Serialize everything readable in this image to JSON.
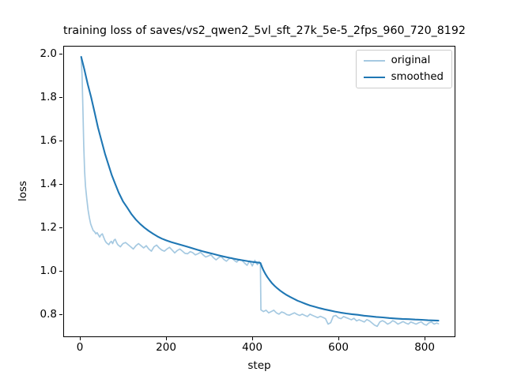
{
  "chart_data": {
    "type": "line",
    "title": "training loss of saves/vs2_qwen2_5vl_sft_27k_5e-5_2fps_960_720_8192",
    "xlabel": "step",
    "ylabel": "loss",
    "xlim": [
      -38.6,
      871.4
    ],
    "ylim": [
      0.694,
      2.036
    ],
    "xticks": [
      0,
      200,
      400,
      600,
      800
    ],
    "yticks": [
      0.8,
      1.0,
      1.2,
      1.4,
      1.6,
      1.8,
      2.0
    ],
    "grid": false,
    "legend_position": "upper right",
    "series": [
      {
        "name": "original",
        "color": "#a5c9e1",
        "linewidth": 1.7,
        "x": [
          3,
          5,
          7,
          9,
          11,
          13,
          16,
          19,
          22,
          25,
          28,
          31,
          34,
          37,
          40,
          43,
          46,
          49,
          52,
          55,
          58,
          61,
          64,
          67,
          70,
          73,
          76,
          79,
          82,
          85,
          88,
          91,
          94,
          97,
          100,
          106,
          112,
          118,
          124,
          130,
          136,
          142,
          148,
          154,
          160,
          166,
          172,
          178,
          184,
          190,
          196,
          202,
          208,
          214,
          220,
          226,
          232,
          238,
          244,
          250,
          256,
          262,
          268,
          274,
          280,
          286,
          292,
          298,
          304,
          310,
          316,
          322,
          328,
          334,
          340,
          346,
          352,
          358,
          364,
          370,
          376,
          382,
          388,
          394,
          400,
          406,
          412,
          416,
          419,
          420,
          426,
          432,
          438,
          444,
          450,
          456,
          462,
          468,
          474,
          480,
          486,
          492,
          498,
          504,
          510,
          516,
          522,
          528,
          534,
          540,
          546,
          552,
          558,
          564,
          570,
          576,
          582,
          588,
          594,
          600,
          606,
          612,
          618,
          624,
          630,
          636,
          642,
          648,
          654,
          660,
          666,
          672,
          678,
          684,
          690,
          696,
          702,
          708,
          714,
          720,
          726,
          732,
          738,
          744,
          750,
          756,
          762,
          768,
          774,
          780,
          786,
          792,
          798,
          804,
          810,
          816,
          822,
          828,
          832
        ],
        "y": [
          1.985,
          1.9,
          1.74,
          1.58,
          1.46,
          1.39,
          1.33,
          1.28,
          1.245,
          1.215,
          1.2,
          1.185,
          1.18,
          1.17,
          1.175,
          1.165,
          1.155,
          1.165,
          1.17,
          1.155,
          1.14,
          1.13,
          1.125,
          1.12,
          1.13,
          1.135,
          1.125,
          1.14,
          1.145,
          1.13,
          1.12,
          1.115,
          1.11,
          1.118,
          1.125,
          1.13,
          1.12,
          1.11,
          1.1,
          1.115,
          1.125,
          1.115,
          1.105,
          1.115,
          1.1,
          1.09,
          1.11,
          1.118,
          1.105,
          1.095,
          1.09,
          1.1,
          1.108,
          1.095,
          1.082,
          1.093,
          1.1,
          1.09,
          1.08,
          1.078,
          1.088,
          1.083,
          1.073,
          1.078,
          1.085,
          1.073,
          1.063,
          1.068,
          1.074,
          1.06,
          1.05,
          1.06,
          1.065,
          1.052,
          1.044,
          1.055,
          1.06,
          1.048,
          1.04,
          1.052,
          1.048,
          1.035,
          1.025,
          1.045,
          1.022,
          1.048,
          1.028,
          1.042,
          1.03,
          0.82,
          0.812,
          0.818,
          0.806,
          0.812,
          0.818,
          0.806,
          0.8,
          0.81,
          0.806,
          0.798,
          0.795,
          0.801,
          0.806,
          0.799,
          0.794,
          0.8,
          0.794,
          0.789,
          0.8,
          0.794,
          0.789,
          0.784,
          0.79,
          0.785,
          0.779,
          0.754,
          0.761,
          0.79,
          0.794,
          0.783,
          0.779,
          0.789,
          0.784,
          0.779,
          0.774,
          0.781,
          0.769,
          0.774,
          0.769,
          0.764,
          0.775,
          0.769,
          0.759,
          0.749,
          0.744,
          0.764,
          0.77,
          0.764,
          0.754,
          0.76,
          0.77,
          0.764,
          0.754,
          0.76,
          0.766,
          0.759,
          0.754,
          0.764,
          0.759,
          0.754,
          0.76,
          0.765,
          0.754,
          0.749,
          0.76,
          0.764,
          0.754,
          0.759,
          0.756
        ]
      },
      {
        "name": "smoothed",
        "color": "#1f77b4",
        "linewidth": 2.1,
        "x": [
          3,
          10,
          18,
          26,
          34,
          42,
          50,
          58,
          66,
          74,
          82,
          90,
          100,
          110,
          120,
          130,
          140,
          150,
          160,
          170,
          180,
          190,
          200,
          212,
          224,
          236,
          248,
          260,
          272,
          284,
          296,
          308,
          320,
          332,
          344,
          356,
          368,
          380,
          392,
          404,
          412,
          419,
          422,
          426,
          430,
          435,
          440,
          446,
          452,
          458,
          465,
          472,
          480,
          488,
          496,
          505,
          514,
          524,
          534,
          545,
          556,
          568,
          580,
          592,
          605,
          618,
          631,
          645,
          659,
          673,
          688,
          703,
          718,
          733,
          748,
          763,
          778,
          793,
          808,
          820,
          832
        ],
        "y": [
          1.985,
          1.93,
          1.86,
          1.8,
          1.73,
          1.66,
          1.6,
          1.54,
          1.49,
          1.44,
          1.4,
          1.36,
          1.32,
          1.29,
          1.26,
          1.235,
          1.215,
          1.198,
          1.183,
          1.17,
          1.158,
          1.148,
          1.14,
          1.132,
          1.125,
          1.118,
          1.111,
          1.104,
          1.097,
          1.09,
          1.084,
          1.078,
          1.072,
          1.066,
          1.061,
          1.056,
          1.051,
          1.047,
          1.043,
          1.04,
          1.038,
          1.036,
          1.02,
          1.002,
          0.987,
          0.971,
          0.957,
          0.942,
          0.93,
          0.919,
          0.908,
          0.898,
          0.888,
          0.879,
          0.871,
          0.862,
          0.855,
          0.847,
          0.84,
          0.834,
          0.828,
          0.822,
          0.817,
          0.812,
          0.807,
          0.803,
          0.8,
          0.797,
          0.793,
          0.79,
          0.787,
          0.785,
          0.782,
          0.78,
          0.778,
          0.777,
          0.775,
          0.774,
          0.772,
          0.771,
          0.77
        ]
      }
    ]
  }
}
